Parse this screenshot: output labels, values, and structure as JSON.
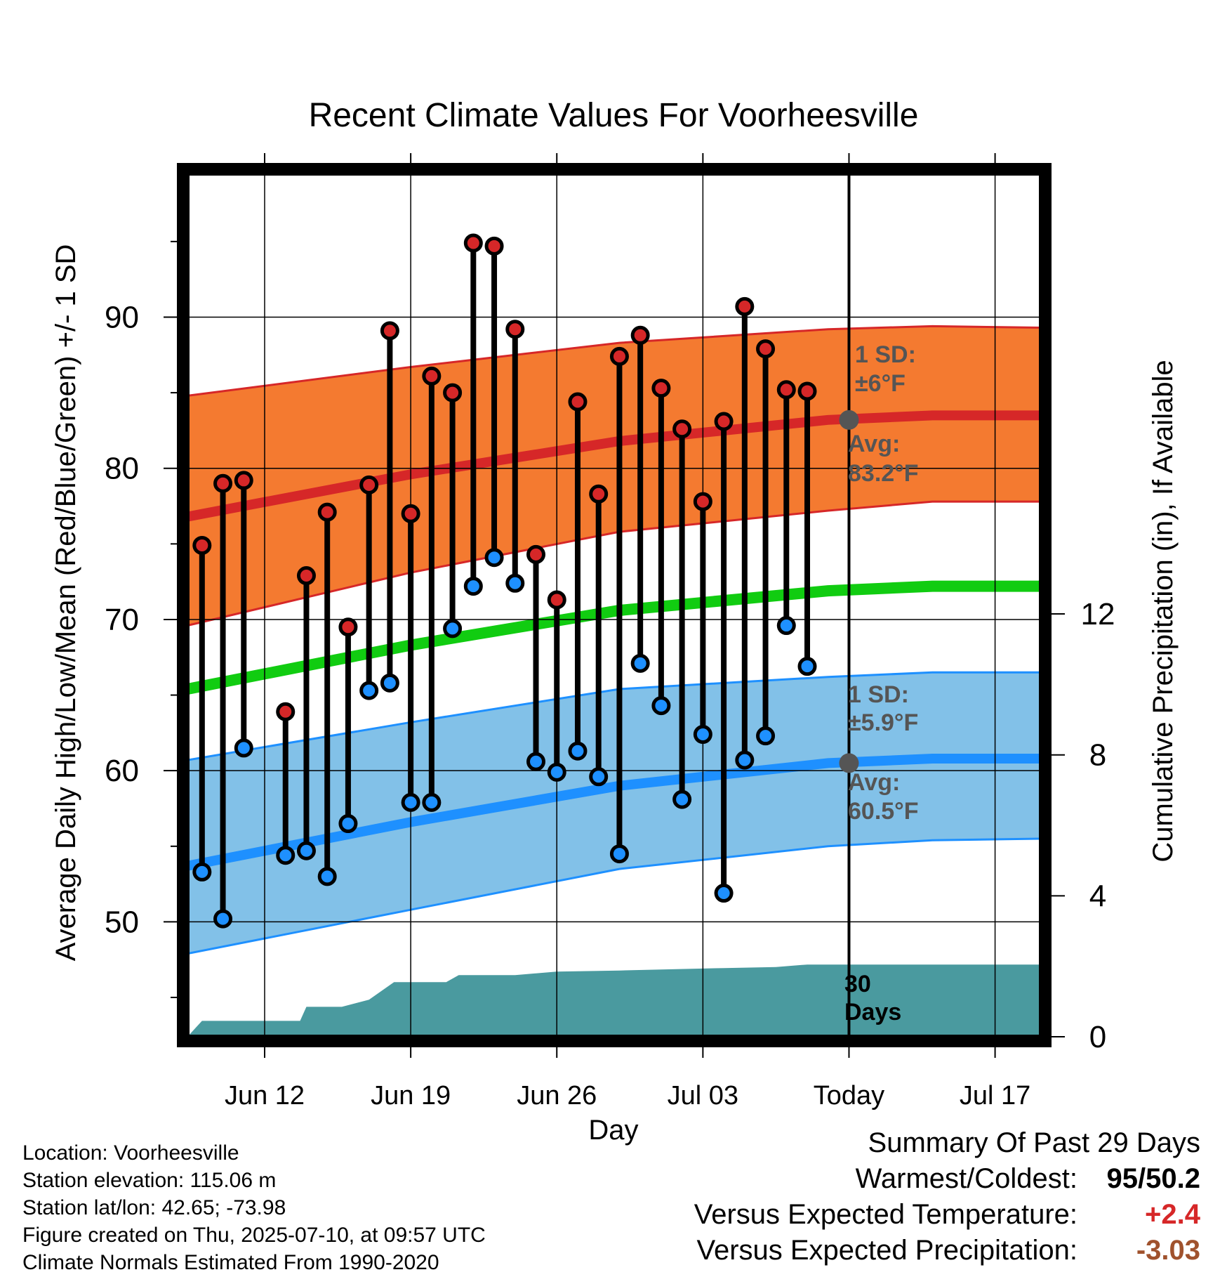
{
  "chart_data": {
    "type": "line",
    "title": "Recent Climate Values For Voorheesville",
    "xlabel": "Day",
    "ylabel": "Average Daily High/Low/Mean (Red/Blue/Green) +/- 1 SD",
    "y2label": "Cumulative Precipitation (in), If Available",
    "x_tick_labels": [
      "Jun 12",
      "Jun 19",
      "Jun 26",
      "Jul 03",
      "Today",
      "Jul 17"
    ],
    "x_tick_days": [
      3,
      10,
      17,
      24,
      31,
      38
    ],
    "x_range_days": [
      -0.7,
      40.2
    ],
    "y_ticks": [
      50,
      60,
      70,
      80,
      90
    ],
    "ylim": [
      42.4,
      99.5
    ],
    "y2_ticks": [
      0,
      4,
      8,
      12
    ],
    "y2_range": [
      0,
      24.5
    ],
    "grid": true,
    "today_day": 31,
    "today_label": "Today",
    "days": [
      0,
      1,
      2,
      3,
      4,
      5,
      6,
      7,
      8,
      9,
      10,
      11,
      12,
      13,
      14,
      15,
      16,
      17,
      18,
      19,
      20,
      21,
      22,
      23,
      24,
      25,
      26,
      27,
      28,
      29
    ],
    "series": [
      {
        "name": "Daily High",
        "color": "#d62728",
        "values": [
          74.9,
          79,
          79.2,
          null,
          63.9,
          72.9,
          77.1,
          69.5,
          78.9,
          89.1,
          77,
          86.1,
          85,
          94.9,
          94.7,
          89.2,
          74.3,
          71.3,
          84.4,
          78.3,
          87.4,
          88.8,
          85.3,
          82.6,
          77.8,
          83.1,
          90.7,
          87.9,
          85.2,
          85.1
        ]
      },
      {
        "name": "Daily Low",
        "color": "#1e90ff",
        "values": [
          53.3,
          50.2,
          61.5,
          null,
          54.4,
          54.7,
          53,
          56.5,
          65.3,
          65.8,
          57.9,
          57.9,
          69.4,
          72.2,
          74.1,
          72.4,
          60.6,
          59.9,
          61.3,
          59.6,
          54.5,
          67.1,
          64.3,
          58.1,
          62.4,
          51.9,
          60.7,
          62.3,
          69.6,
          66.9
        ]
      }
    ],
    "normals": {
      "days": [
        -0.7,
        10,
        20,
        30,
        35,
        40.2
      ],
      "high_mean": [
        76.8,
        79.6,
        81.8,
        83.2,
        83.5,
        83.5
      ],
      "high_sd_upper": [
        84.8,
        86.7,
        88.3,
        89.2,
        89.4,
        89.3
      ],
      "high_sd_lower": [
        69.6,
        73.1,
        75.8,
        77.2,
        77.8,
        77.8
      ],
      "mean": [
        65.4,
        68.3,
        70.6,
        71.9,
        72.2,
        72.2
      ],
      "low_mean": [
        53.7,
        56.6,
        59.0,
        60.5,
        60.8,
        60.8
      ],
      "low_sd_upper": [
        60.7,
        63.2,
        65.4,
        66.2,
        66.5,
        66.5
      ],
      "low_sd_lower": [
        47.9,
        50.8,
        53.5,
        55,
        55.4,
        55.5
      ]
    },
    "precip_cumulative": {
      "days": [
        -0.7,
        0,
        2.2,
        2.7,
        4.7,
        5,
        6.7,
        8,
        9.2,
        9.6,
        11.7,
        12.3,
        15,
        17,
        20,
        25,
        27.5,
        29,
        30,
        40.2
      ],
      "values": [
        0,
        0.45,
        0.45,
        0.45,
        0.45,
        0.85,
        0.85,
        1.05,
        1.55,
        1.55,
        1.55,
        1.75,
        1.75,
        1.85,
        1.88,
        1.95,
        1.98,
        2.05,
        2.05,
        2.05
      ]
    },
    "annotations": {
      "high_sd": {
        "line1": "1 SD:",
        "line2": "±6°F"
      },
      "high_avg": {
        "line1": "Avg:",
        "line2": "83.2°F"
      },
      "low_sd": {
        "line1": "1 SD:",
        "line2": "±5.9°F"
      },
      "low_avg": {
        "line1": "Avg:",
        "line2": "60.5°F"
      },
      "precip": {
        "line1": "30",
        "line2": "Days"
      }
    },
    "annotation_markers": [
      {
        "day": 31,
        "value": 83.2
      },
      {
        "day": 31,
        "value": 60.5
      }
    ],
    "colors": {
      "high_band": "#f47a30",
      "high_line": "#d62728",
      "mean_line": "#11cc11",
      "low_band": "#82c1e8",
      "low_line": "#1e90ff",
      "precip": "#4a9a9f",
      "annotation_text": "#555555"
    }
  },
  "footer": {
    "location": "Location: Voorheesville",
    "elevation": "Station elevation: 115.06 m",
    "latlon": "Station lat/lon: 42.65; -73.98",
    "created": "Figure created on Thu, 2025-07-10, at 09:57 UTC",
    "normals": "Climate Normals Estimated From 1990-2020"
  },
  "summary": {
    "title": "Summary Of Past 29 Days",
    "warmest_label": "Warmest/Coldest:",
    "warmest_value": "95/50.2",
    "temp_label": "Versus Expected Temperature:",
    "temp_value": "+2.4",
    "temp_color": "#d62728",
    "precip_label": "Versus Expected Precipitation:",
    "precip_value": "-3.03",
    "precip_color": "#a0522d"
  }
}
